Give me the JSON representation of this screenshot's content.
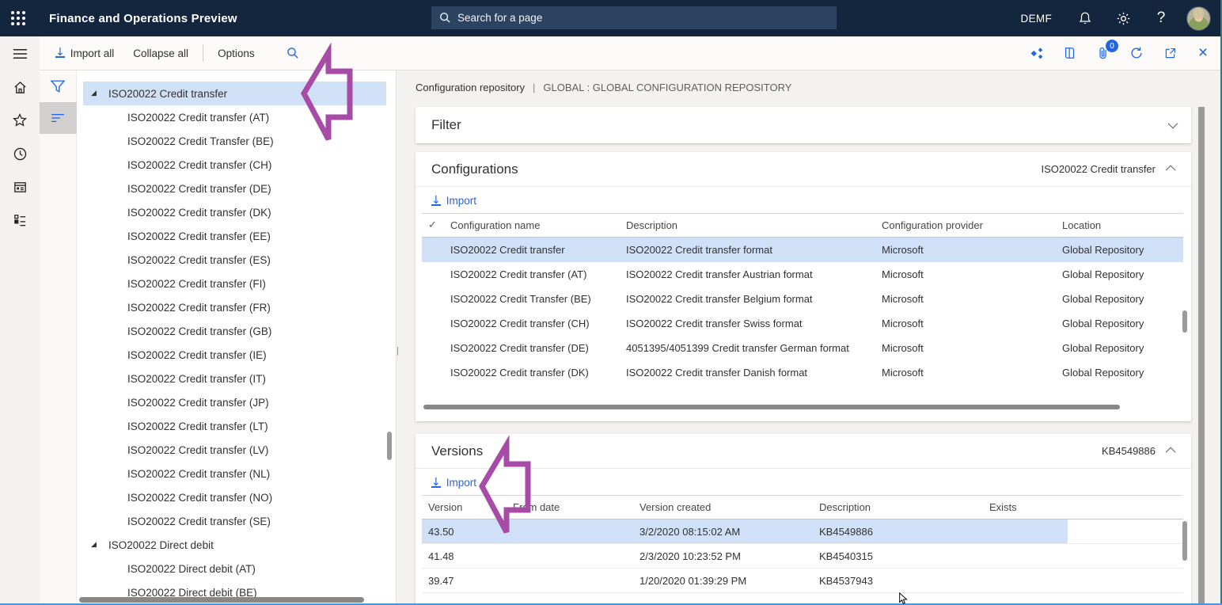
{
  "topbar": {
    "title": "Finance and Operations Preview",
    "search_placeholder": "Search for a page",
    "company": "DEMF"
  },
  "action_pane": {
    "import_all": "Import all",
    "collapse_all": "Collapse all",
    "options": "Options",
    "attach_badge": "0"
  },
  "tree": {
    "items": [
      {
        "label": "ISO20022 Credit transfer",
        "level": 0,
        "expanded": true,
        "selected": true
      },
      {
        "label": "ISO20022 Credit transfer (AT)",
        "level": 1
      },
      {
        "label": "ISO20022 Credit Transfer (BE)",
        "level": 1
      },
      {
        "label": "ISO20022 Credit transfer (CH)",
        "level": 1
      },
      {
        "label": "ISO20022 Credit transfer (DE)",
        "level": 1
      },
      {
        "label": "ISO20022 Credit transfer (DK)",
        "level": 1
      },
      {
        "label": "ISO20022 Credit transfer (EE)",
        "level": 1
      },
      {
        "label": "ISO20022 Credit transfer (ES)",
        "level": 1
      },
      {
        "label": "ISO20022 Credit transfer (FI)",
        "level": 1
      },
      {
        "label": "ISO20022 Credit transfer (FR)",
        "level": 1
      },
      {
        "label": "ISO20022 Credit transfer (GB)",
        "level": 1
      },
      {
        "label": "ISO20022 Credit transfer (IE)",
        "level": 1
      },
      {
        "label": "ISO20022 Credit transfer (IT)",
        "level": 1
      },
      {
        "label": "ISO20022 Credit transfer (JP)",
        "level": 1
      },
      {
        "label": "ISO20022 Credit transfer (LT)",
        "level": 1
      },
      {
        "label": "ISO20022 Credit transfer (LV)",
        "level": 1
      },
      {
        "label": "ISO20022 Credit transfer (NL)",
        "level": 1
      },
      {
        "label": "ISO20022 Credit transfer (NO)",
        "level": 1
      },
      {
        "label": "ISO20022 Credit transfer (SE)",
        "level": 1
      },
      {
        "label": "ISO20022 Direct debit",
        "level": 0,
        "expanded": true
      },
      {
        "label": "ISO20022 Direct debit (AT)",
        "level": 1
      },
      {
        "label": "ISO20022 Direct debit (BE)",
        "level": 1
      }
    ]
  },
  "content": {
    "breadcrumb": "Configuration repository",
    "separator": "|",
    "repository": "GLOBAL : GLOBAL CONFIGURATION REPOSITORY"
  },
  "filter_section": {
    "title": "Filter"
  },
  "configurations": {
    "title": "Configurations",
    "selected_name": "ISO20022 Credit transfer",
    "import_label": "Import",
    "check_glyph": "✓",
    "columns": [
      "Configuration name",
      "Description",
      "Configuration provider",
      "Location"
    ],
    "rows": [
      {
        "name": "ISO20022 Credit transfer",
        "description": "ISO20022 Credit transfer format",
        "provider": "Microsoft",
        "location": "Global Repository",
        "selected": true
      },
      {
        "name": "ISO20022 Credit transfer (AT)",
        "description": "ISO20022 Credit transfer Austrian format",
        "provider": "Microsoft",
        "location": "Global Repository"
      },
      {
        "name": "ISO20022 Credit Transfer (BE)",
        "description": "ISO20022 Credit transfer Belgium format",
        "provider": "Microsoft",
        "location": "Global Repository"
      },
      {
        "name": "ISO20022 Credit transfer (CH)",
        "description": "ISO20022 Credit transfer Swiss format",
        "provider": "Microsoft",
        "location": "Global Repository"
      },
      {
        "name": "ISO20022 Credit transfer (DE)",
        "description": "4051395/4051399 Credit transfer German format",
        "provider": "Microsoft",
        "location": "Global Repository"
      },
      {
        "name": "ISO20022 Credit transfer (DK)",
        "description": "ISO20022 Credit transfer Danish format",
        "provider": "Microsoft",
        "location": "Global Repository"
      }
    ]
  },
  "versions": {
    "title": "Versions",
    "badge": "KB4549886",
    "import_label": "Import",
    "columns": [
      "Version",
      "From date",
      "Version created",
      "Description",
      "Exists"
    ],
    "rows": [
      {
        "version": "43.50",
        "from_date": "",
        "created": "3/2/2020 08:15:02 AM",
        "description": "KB4549886",
        "exists": "",
        "selected": true
      },
      {
        "version": "41.48",
        "from_date": "",
        "created": "2/3/2020 10:23:52 PM",
        "description": "KB4540315",
        "exists": ""
      },
      {
        "version": "39.47",
        "from_date": "",
        "created": "1/20/2020 01:39:29 PM",
        "description": "KB4537943",
        "exists": ""
      }
    ]
  },
  "colors": {
    "accent": "#2266e3",
    "selection": "#cfe0f7",
    "annotation": "#a64ca6",
    "navbar": "#14263d"
  }
}
